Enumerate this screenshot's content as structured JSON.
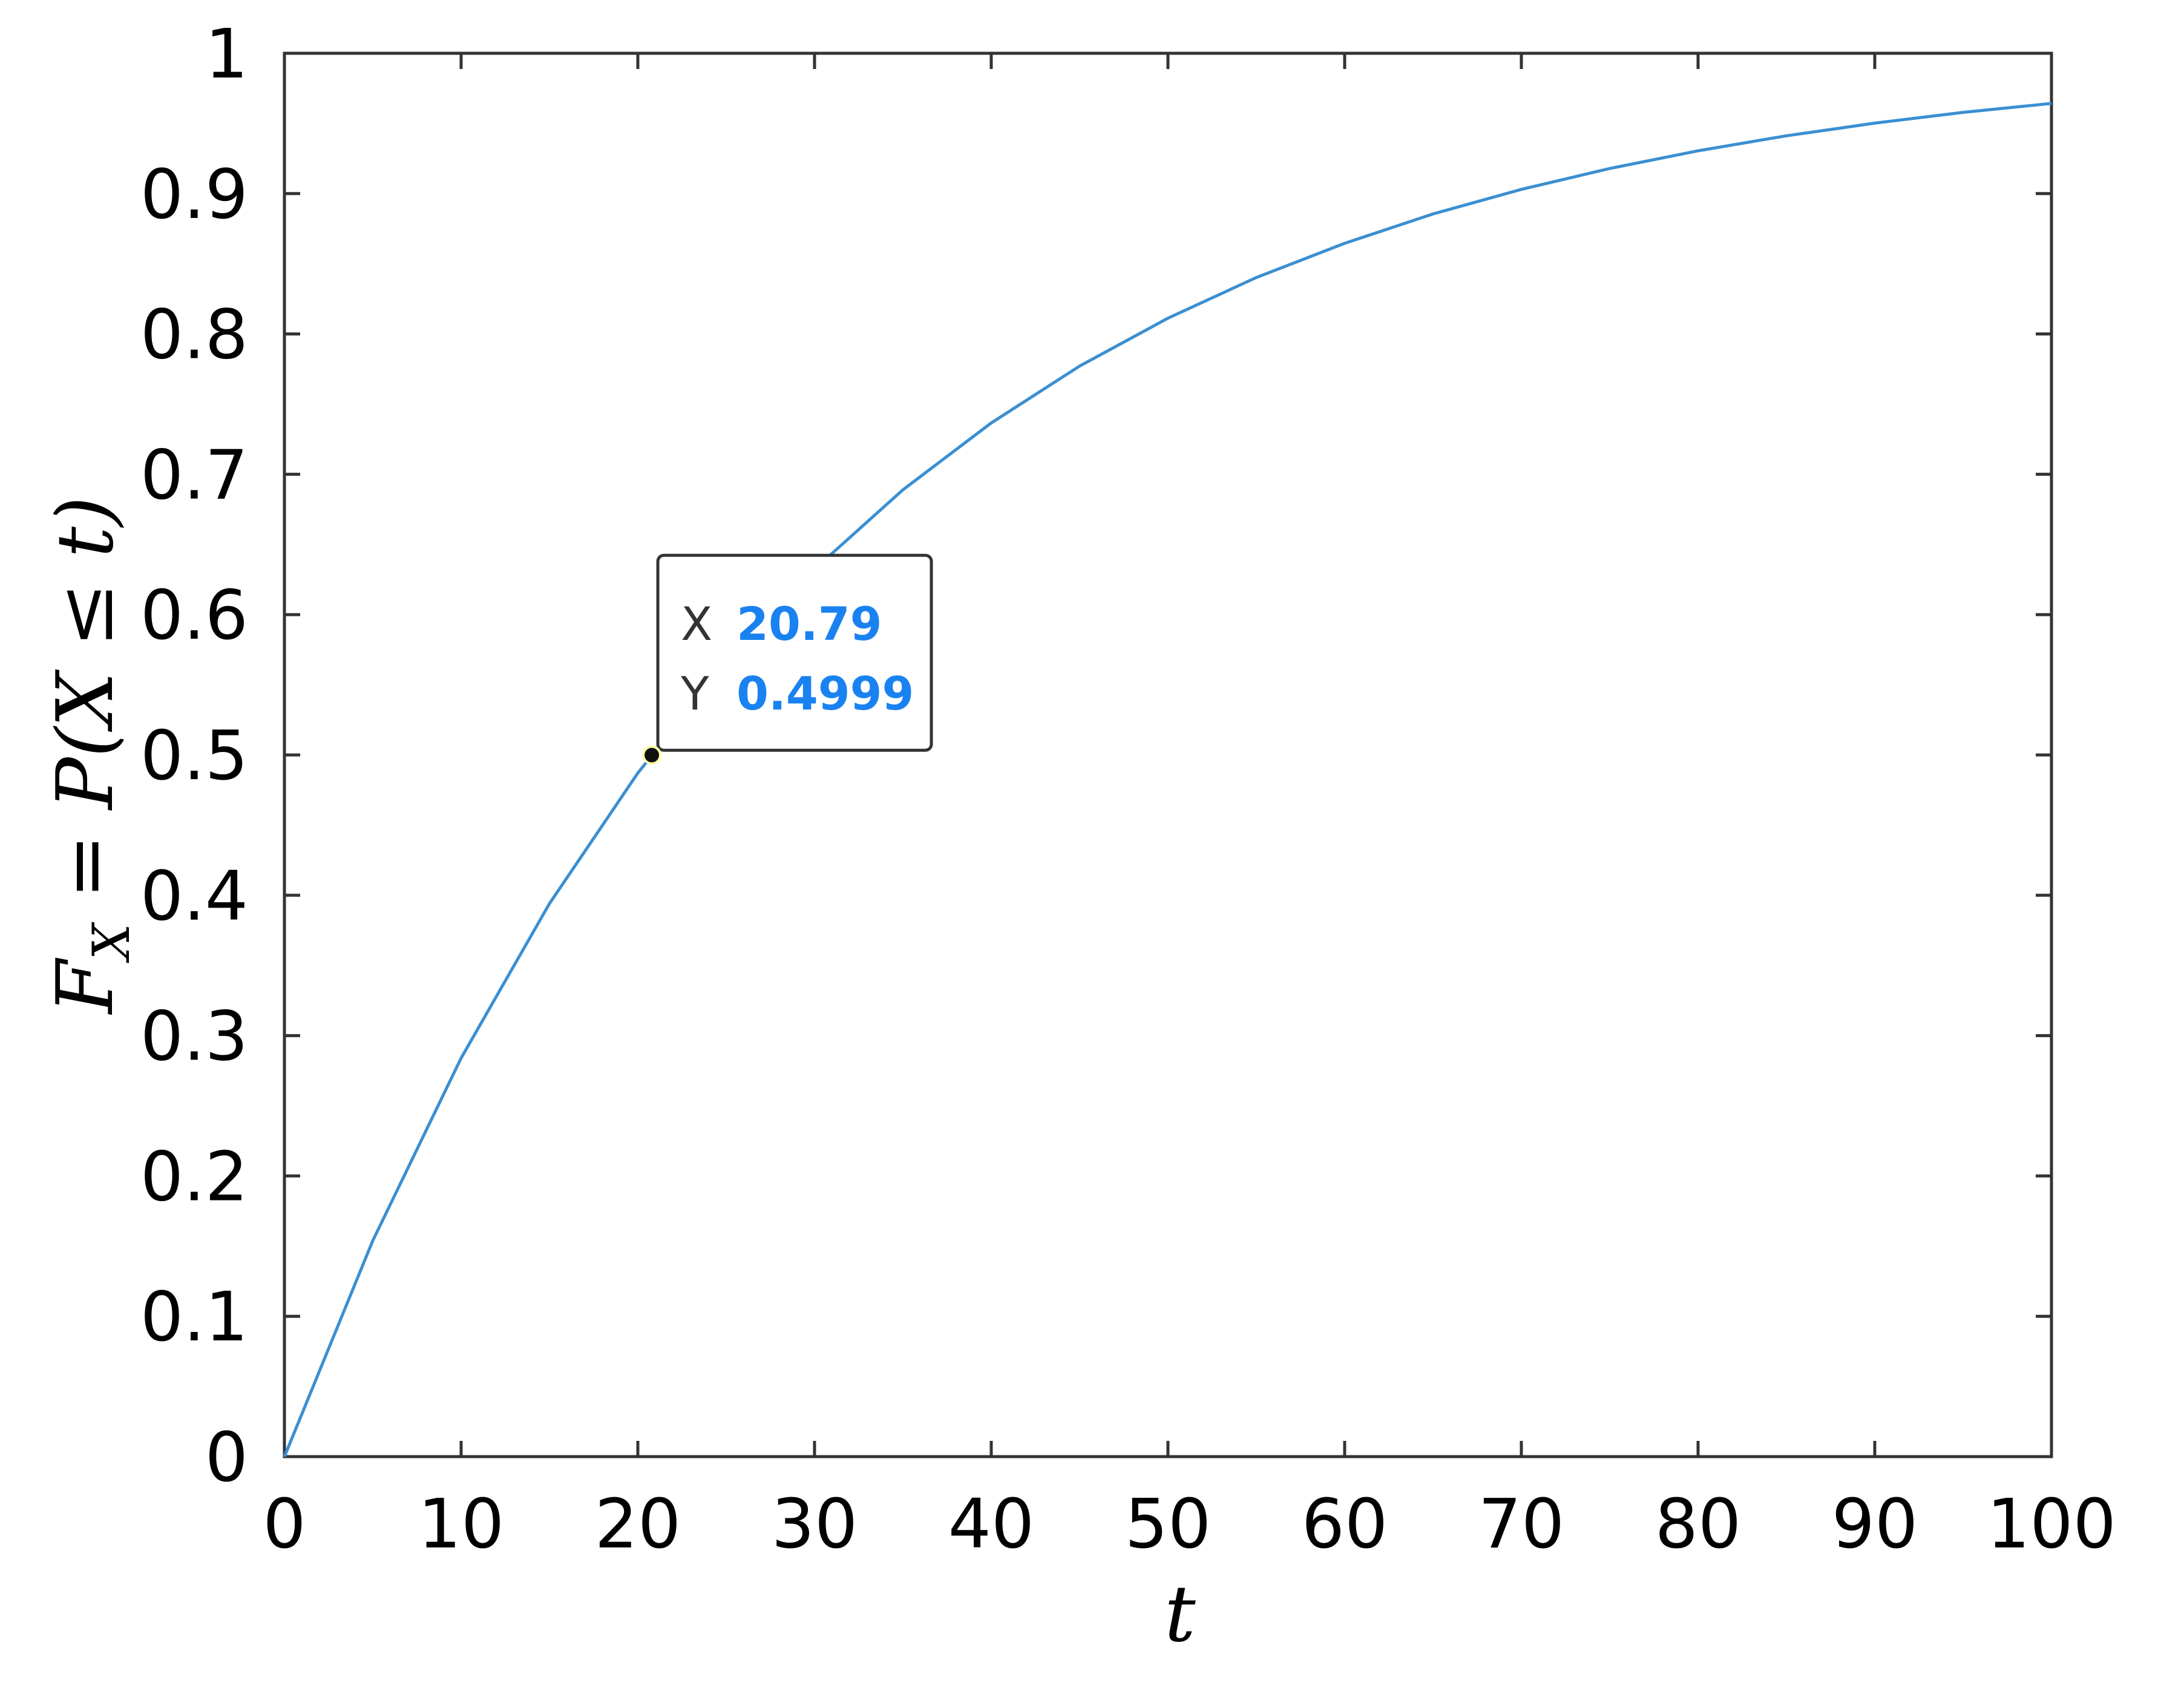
{
  "chart_data": {
    "type": "line",
    "title": "",
    "xlabel": "t",
    "ylabel": {
      "main": "F",
      "subscript": "X",
      "rest": " = P(X ≤ t)"
    },
    "xlim": [
      0,
      100
    ],
    "ylim": [
      0,
      1
    ],
    "x_ticks": [
      0,
      10,
      20,
      30,
      40,
      50,
      60,
      70,
      80,
      90,
      100
    ],
    "x_tick_labels": [
      "0",
      "10",
      "20",
      "30",
      "40",
      "50",
      "60",
      "70",
      "80",
      "90",
      "100"
    ],
    "y_ticks": [
      0,
      0.1,
      0.2,
      0.3,
      0.4,
      0.5,
      0.6,
      0.7,
      0.8,
      0.9,
      1
    ],
    "y_tick_labels": [
      "0",
      "0.1",
      "0.2",
      "0.3",
      "0.4",
      "0.5",
      "0.6",
      "0.7",
      "0.8",
      "0.9",
      "1"
    ],
    "grid": false,
    "series": [
      {
        "color": "#3b8fd1",
        "x": [
          0,
          5,
          10,
          15,
          20,
          25,
          30,
          35,
          40,
          45,
          50,
          55,
          60,
          65,
          70,
          75,
          80,
          85,
          90,
          95,
          100
        ],
        "y": [
          0,
          0.1539,
          0.284,
          0.3941,
          0.4871,
          0.5659,
          0.6324,
          0.6889,
          0.7366,
          0.7771,
          0.8112,
          0.8402,
          0.8646,
          0.8855,
          0.903,
          0.9179,
          0.9305,
          0.9412,
          0.9502,
          0.9579,
          0.9643
        ]
      }
    ],
    "datatip": {
      "x_key": "X",
      "x_value": "20.79",
      "y_key": "Y",
      "y_value": "0.4999",
      "value_color": "#1a82f0",
      "point": [
        20.79,
        0.4999
      ]
    }
  }
}
